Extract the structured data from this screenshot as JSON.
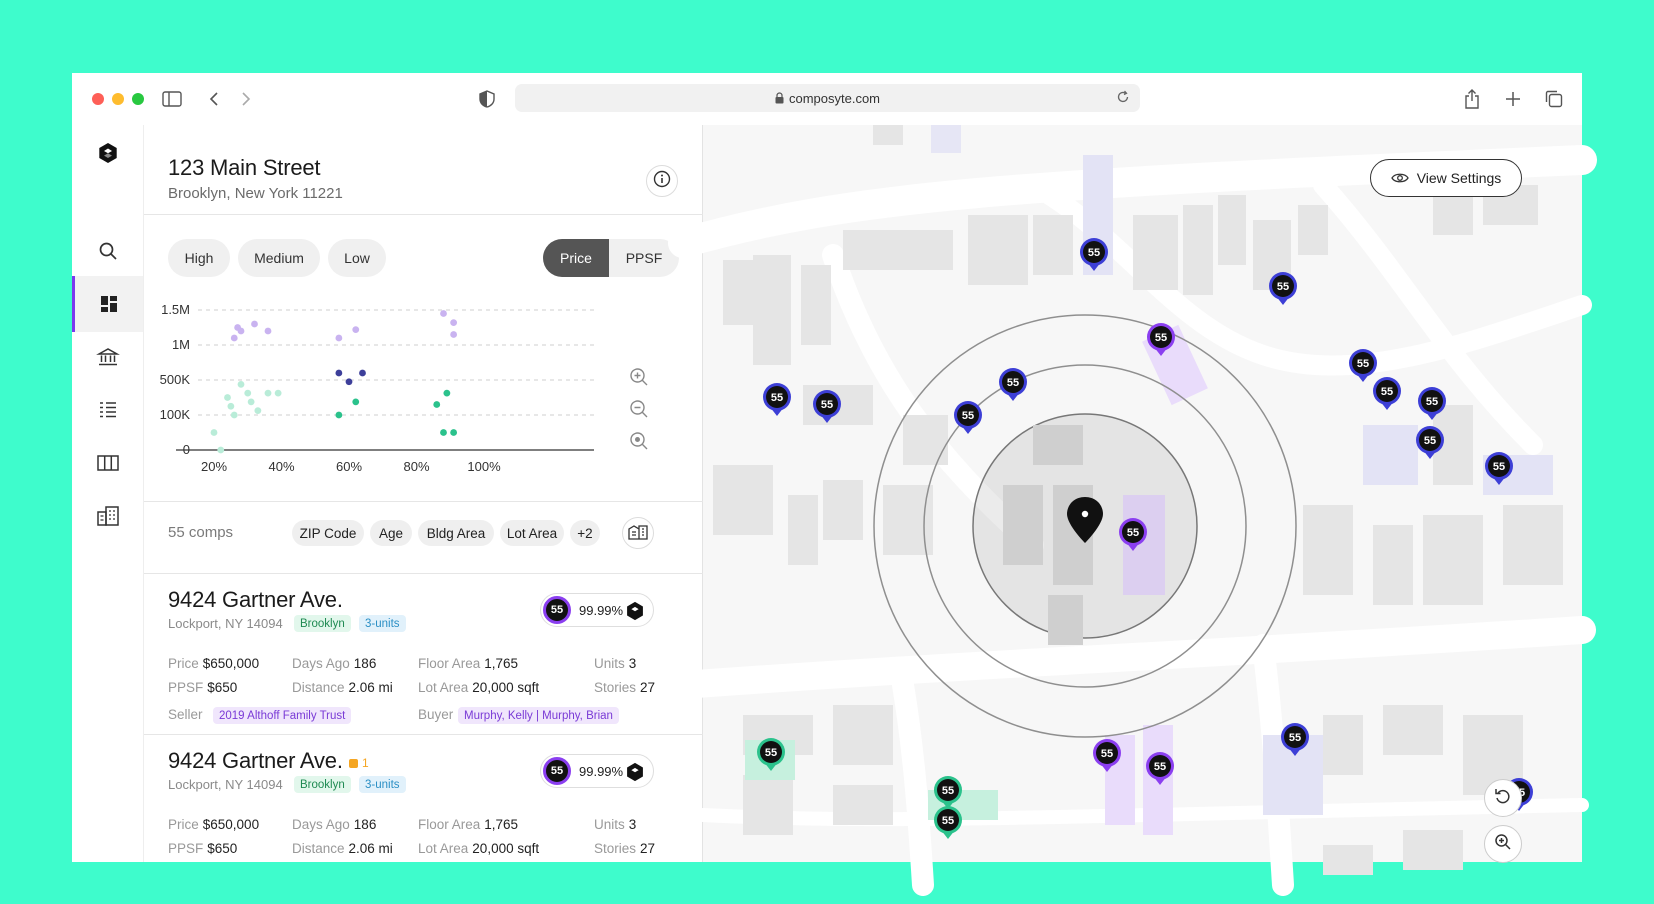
{
  "browser": {
    "url": "composyte.com"
  },
  "property": {
    "title": "123 Main Street",
    "subtitle": "Brooklyn, New York 11221"
  },
  "filters": {
    "levels": [
      "High",
      "Medium",
      "Low"
    ],
    "metric_options": [
      "Price",
      "PPSF"
    ],
    "metric_selected": "Price"
  },
  "chart_data": {
    "type": "scatter",
    "yticks": [
      "1.5M",
      "1M",
      "500K",
      "100K",
      "0"
    ],
    "xticks": [
      "20%",
      "40%",
      "60%",
      "80%",
      "100%"
    ],
    "series": [
      {
        "color": "#c9b3f0",
        "points": [
          [
            26,
            1.1
          ],
          [
            27,
            1.25
          ],
          [
            28,
            1.2
          ],
          [
            32,
            1.3
          ],
          [
            36,
            1.2
          ],
          [
            57,
            1.1
          ],
          [
            62,
            1.22
          ],
          [
            88,
            1.45
          ],
          [
            91,
            1.32
          ],
          [
            91,
            1.15
          ]
        ]
      },
      {
        "color": "#3d3f9a",
        "points": [
          [
            57,
            0.6
          ],
          [
            60,
            0.48
          ],
          [
            64,
            0.6
          ]
        ]
      },
      {
        "color": "#b9ecd8",
        "points": [
          [
            24,
            0.3
          ],
          [
            25,
            0.2
          ],
          [
            26,
            0.1
          ],
          [
            28,
            0.45
          ],
          [
            30,
            0.35
          ],
          [
            31,
            0.25
          ],
          [
            33,
            0.15
          ],
          [
            36,
            0.35
          ],
          [
            39,
            0.35
          ],
          [
            20,
            0.05
          ],
          [
            22,
            0.0
          ]
        ]
      },
      {
        "color": "#2bc28c",
        "points": [
          [
            57,
            0.1
          ],
          [
            62,
            0.25
          ],
          [
            86,
            0.22
          ],
          [
            89,
            0.35
          ],
          [
            88,
            0.05
          ],
          [
            91,
            0.05
          ]
        ]
      }
    ]
  },
  "comps": {
    "count_label": "55 comps",
    "tags": [
      "ZIP Code",
      "Age",
      "Bldg Area",
      "Lot Area",
      "+2"
    ]
  },
  "listings": [
    {
      "title": "9424 Gartner Ave.",
      "flag": "",
      "location": "Lockport, NY 14094",
      "borough": "Brooklyn",
      "units_tag": "3-units",
      "score": "55",
      "match": "99.99%",
      "price_label": "Price",
      "price": "$650,000",
      "ppsf_label": "PPSF",
      "ppsf": "$650",
      "days_label": "Days Ago",
      "days": "186",
      "distance_label": "Distance",
      "distance": "2.06 mi",
      "floor_label": "Floor Area",
      "floor": "1,765",
      "lot_label": "Lot Area",
      "lot": "20,000 sqft",
      "units_label": "Units",
      "units": "3",
      "stories_label": "Stories",
      "stories": "27",
      "seller_label": "Seller",
      "seller": "2019 Althoff Family Trust",
      "buyer_label": "Buyer",
      "buyer": "Murphy, Kelly | Murphy, Brian"
    },
    {
      "title": "9424 Gartner Ave.",
      "flag": "1",
      "location": "Lockport, NY 14094",
      "borough": "Brooklyn",
      "units_tag": "3-units",
      "score": "55",
      "match": "99.99%",
      "price_label": "Price",
      "price": "$650,000",
      "ppsf_label": "PPSF",
      "ppsf": "$650",
      "days_label": "Days Ago",
      "days": "186",
      "distance_label": "Distance",
      "distance": "2.06 mi",
      "floor_label": "Floor Area",
      "floor": "1,765",
      "lot_label": "Lot Area",
      "lot": "20,000 sqft",
      "units_label": "Units",
      "units": "3",
      "stories_label": "Stories",
      "stories": "27"
    }
  ],
  "map": {
    "view_settings_label": "View Settings",
    "pin_label": "55",
    "colors": {
      "blue": "#3d3fd6",
      "purple": "#8b3ff0",
      "green": "#2bc28c"
    }
  }
}
